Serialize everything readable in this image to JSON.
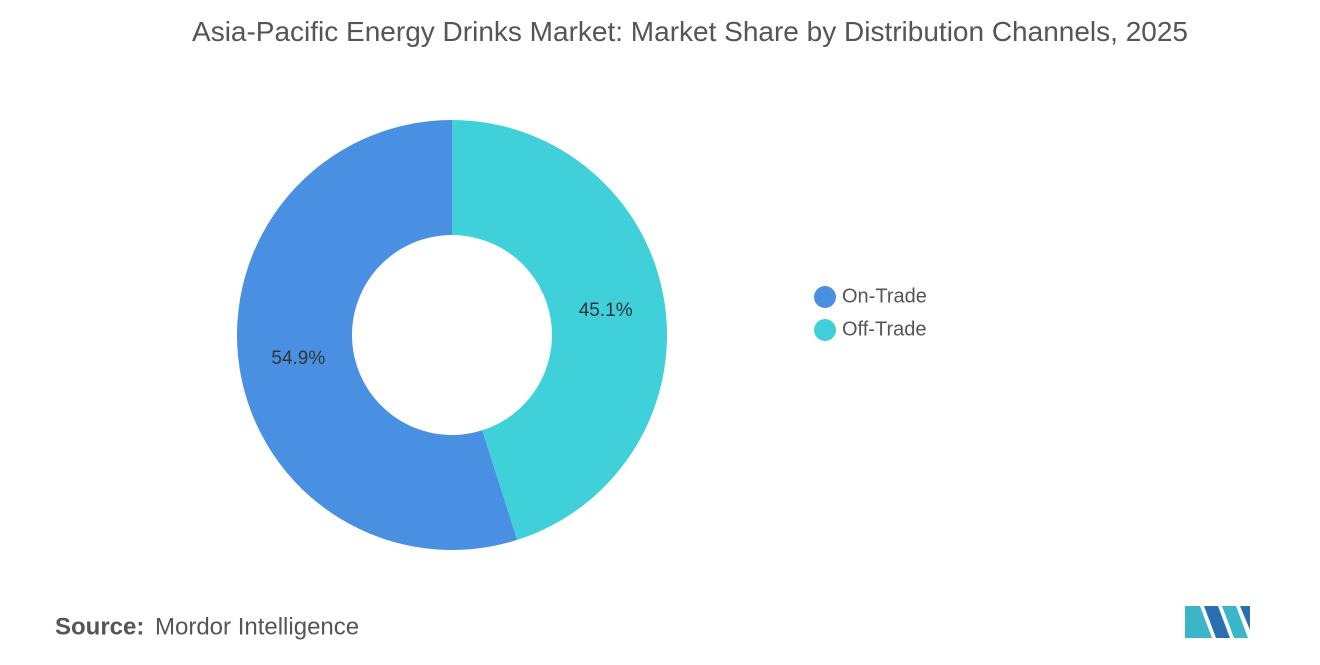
{
  "chart_data": {
    "type": "donut",
    "title": "Asia-Pacific Energy Drinks Market: Market Share by Distribution Channels, 2025",
    "categories": [
      "On-Trade",
      "Off-Trade"
    ],
    "values": [
      54.9,
      45.1
    ],
    "value_labels": [
      "54.9%",
      "45.1%"
    ],
    "colors": [
      "#4a90e2",
      "#40d0da"
    ],
    "legend": "right",
    "source_label": "Source:",
    "source": "Mordor Intelligence"
  }
}
